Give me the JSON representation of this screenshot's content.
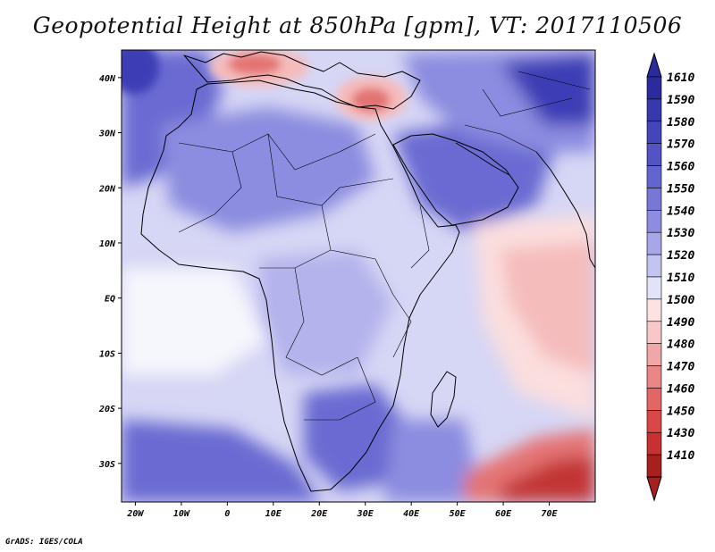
{
  "title": "Geopotential Height at 850hPa [gpm], VT: 2017110506",
  "credit": "GrADS: IGES/COLA",
  "map": {
    "lon_range": [
      -23,
      80
    ],
    "lat_range": [
      -37,
      45
    ],
    "lon_ticks": [
      {
        "value": -20,
        "label": "20W"
      },
      {
        "value": -10,
        "label": "10W"
      },
      {
        "value": 0,
        "label": "0"
      },
      {
        "value": 10,
        "label": "10E"
      },
      {
        "value": 20,
        "label": "20E"
      },
      {
        "value": 30,
        "label": "30E"
      },
      {
        "value": 40,
        "label": "40E"
      },
      {
        "value": 50,
        "label": "50E"
      },
      {
        "value": 60,
        "label": "60E"
      },
      {
        "value": 70,
        "label": "70E"
      }
    ],
    "lat_ticks": [
      {
        "value": 40,
        "label": "40N"
      },
      {
        "value": 30,
        "label": "30N"
      },
      {
        "value": 20,
        "label": "20N"
      },
      {
        "value": 10,
        "label": "10N"
      },
      {
        "value": 0,
        "label": "EQ"
      },
      {
        "value": -10,
        "label": "10S"
      },
      {
        "value": -20,
        "label": "20S"
      },
      {
        "value": -30,
        "label": "30S"
      }
    ]
  },
  "colorbar": {
    "levels": [
      {
        "label": "1610",
        "color": "#2b2b9e"
      },
      {
        "label": "1590",
        "color": "#3838ad"
      },
      {
        "label": "1580",
        "color": "#4545bb"
      },
      {
        "label": "1570",
        "color": "#5353c6"
      },
      {
        "label": "1560",
        "color": "#6464cf"
      },
      {
        "label": "1550",
        "color": "#7777d8"
      },
      {
        "label": "1540",
        "color": "#8c8ce0"
      },
      {
        "label": "1530",
        "color": "#a6a6e8"
      },
      {
        "label": "1520",
        "color": "#c4c4f1"
      },
      {
        "label": "1510",
        "color": "#e2e2f8"
      },
      {
        "label": "1500",
        "color": "#fbe3e3"
      },
      {
        "label": "1490",
        "color": "#f7c8c8"
      },
      {
        "label": "1480",
        "color": "#f1a7a7"
      },
      {
        "label": "1470",
        "color": "#ea8686"
      },
      {
        "label": "1460",
        "color": "#e26666"
      },
      {
        "label": "1450",
        "color": "#d84848"
      },
      {
        "label": "1430",
        "color": "#c83131"
      },
      {
        "label": "1410",
        "color": "#a81f1f"
      }
    ]
  },
  "field_colors": {
    "deep_blue": "#3e3eb5",
    "blue": "#6a6ad2",
    "mid_blue": "#8c8ce0",
    "light_blue": "#b4b4ec",
    "pale_blue": "#d6d6f5",
    "white": "#f6f6fd",
    "pale_red": "#fbdede",
    "light_red": "#f5bcbc",
    "red": "#e47373",
    "dark_red": "#c23636"
  }
}
